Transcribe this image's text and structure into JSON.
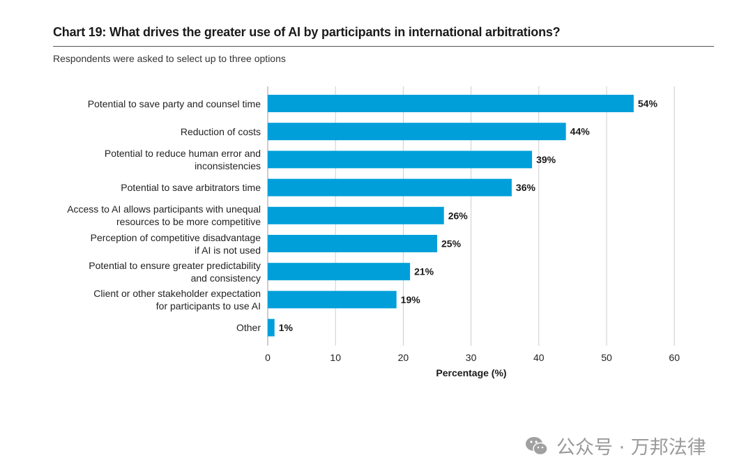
{
  "header": {
    "title": "Chart 19: What drives the greater use of AI by participants in international arbitrations?",
    "subtitle": "Respondents were asked to select up to three options"
  },
  "chart_data": {
    "type": "bar",
    "orientation": "horizontal",
    "title": "Chart 19: What drives the greater use of AI by participants in international arbitrations?",
    "subtitle": "Respondents were asked to select up to three options",
    "categories": [
      [
        "Potential to save party and counsel time"
      ],
      [
        "Reduction of costs"
      ],
      [
        "Potential to reduce human error and",
        "inconsistencies"
      ],
      [
        "Potential to save arbitrators time"
      ],
      [
        "Access to AI allows participants with unequal",
        "resources to be more competitive"
      ],
      [
        "Perception of competitive disadvantage",
        "if AI is not used"
      ],
      [
        "Potential to ensure greater predictability",
        "and consistency"
      ],
      [
        "Client or other stakeholder expectation",
        "for participants to use AI"
      ],
      [
        "Other"
      ]
    ],
    "values": [
      54,
      44,
      39,
      36,
      26,
      25,
      21,
      19,
      1
    ],
    "value_labels": [
      "54%",
      "44%",
      "39%",
      "36%",
      "26%",
      "25%",
      "21%",
      "19%",
      "1%"
    ],
    "xlabel": "Percentage (%)",
    "ylabel": "",
    "xlim": [
      0,
      60
    ],
    "xticks": [
      "0",
      "10",
      "20",
      "30",
      "40",
      "50",
      "60"
    ],
    "grid": true,
    "bar_color": "#009fda",
    "grid_color": "#cccccc"
  },
  "watermark": {
    "text": "公众号 · 万邦法律"
  }
}
